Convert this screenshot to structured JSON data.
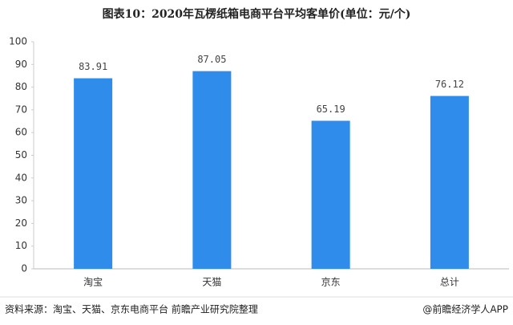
{
  "chart_data": {
    "type": "bar",
    "title": "图表10：2020年瓦楞纸箱电商平台平均客单价(单位：元/个)",
    "categories": [
      "淘宝",
      "天猫",
      "京东",
      "总计"
    ],
    "values": [
      83.91,
      87.05,
      65.19,
      76.12
    ],
    "color": "#2f8ceb",
    "ylim": [
      0,
      100
    ],
    "yticks": [
      0,
      10,
      20,
      30,
      40,
      50,
      60,
      70,
      80,
      90,
      100
    ],
    "grid": false,
    "source": "资料来源：淘宝、天猫、京东电商平台 前瞻产业研究院整理",
    "credit": "@前瞻经济学人APP"
  }
}
